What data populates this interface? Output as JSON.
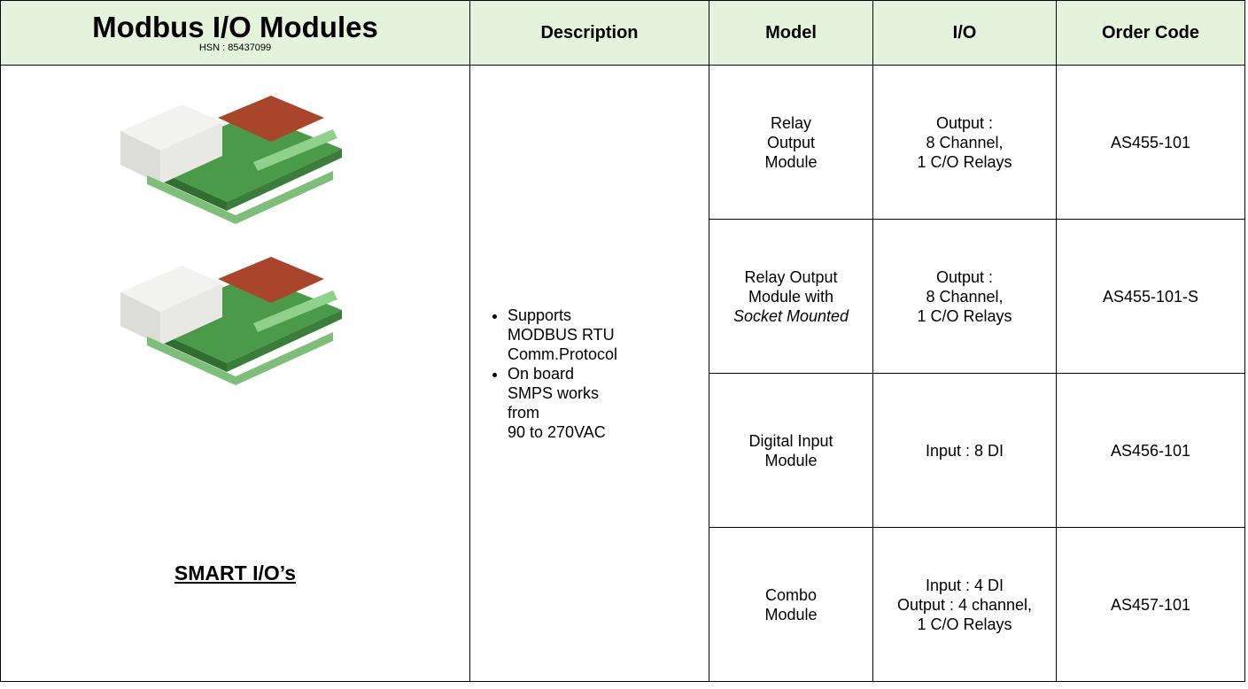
{
  "header": {
    "title": "Modbus I/O Modules",
    "hsn": "HSN : 85437099",
    "columns": [
      "Description",
      "Model",
      "I/O",
      "Order Code"
    ]
  },
  "product": {
    "name": "SMART I/O’s",
    "description": [
      [
        "Supports",
        "MODBUS RTU",
        "Comm.Protocol"
      ],
      [
        "On board",
        "SMPS works",
        "from",
        "90 to 270VAC"
      ]
    ]
  },
  "rows": [
    {
      "model": [
        "Relay",
        "Output",
        "Module"
      ],
      "io": [
        "Output  :",
        "8 Channel,",
        "1 C/O Relays"
      ],
      "code": "AS455-101"
    },
    {
      "model": [
        "Relay Output",
        "Module with",
        "Socket Mounted"
      ],
      "io": [
        "Output  :",
        "8 Channel,",
        "1 C/O Relays"
      ],
      "code": "AS455-101-S"
    },
    {
      "model": [
        "Digital Input",
        "Module"
      ],
      "io": [
        "Input : 8 DI"
      ],
      "code": "AS456-101"
    },
    {
      "model": [
        "Combo",
        "Module"
      ],
      "io": [
        "Input : 4 DI",
        "Output : 4 channel,",
        "1 C/O Relays"
      ],
      "code": "AS457-101"
    }
  ]
}
